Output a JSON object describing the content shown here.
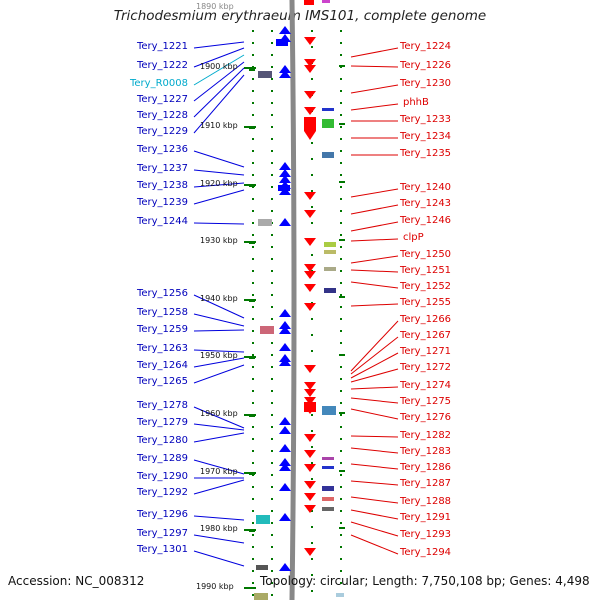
{
  "header": {
    "title": "Trichodesmium erythraeum IMS101, complete genome"
  },
  "footer": {
    "accession": "Accession: NC_008312",
    "topology": "Topology: circular; Length: 7,750,108 bp; Genes: 4,498"
  },
  "scale": {
    "top_partial": "1890 kbp",
    "ticks": [
      "1900 kbp",
      "1910 kbp",
      "1920 kbp",
      "1930 kbp",
      "1940 kbp",
      "1950 kbp",
      "1960 kbp",
      "1970 kbp",
      "1980 kbp",
      "1990 kbp"
    ]
  },
  "colors": {
    "reverse_strand": "#0000ff",
    "forward_strand": "#ff0000",
    "rna": "#00aacc",
    "backbone": "#888888",
    "tick": "#007700"
  },
  "left_labels": [
    "Tery_1221",
    "Tery_1222",
    "Tery_R0008",
    "Tery_1227",
    "Tery_1228",
    "Tery_1229",
    "Tery_1236",
    "Tery_1237",
    "Tery_1238",
    "Tery_1239",
    "Tery_1244",
    "Tery_1256",
    "Tery_1258",
    "Tery_1259",
    "Tery_1263",
    "Tery_1264",
    "Tery_1265",
    "Tery_1278",
    "Tery_1279",
    "Tery_1280",
    "Tery_1289",
    "Tery_1290",
    "Tery_1292",
    "Tery_1296",
    "Tery_1297",
    "Tery_1301"
  ],
  "right_labels": [
    "Tery_1224",
    "Tery_1226",
    "Tery_1230",
    "phhB",
    "Tery_1233",
    "Tery_1234",
    "Tery_1235",
    "Tery_1240",
    "Tery_1243",
    "Tery_1246",
    "clpP",
    "Tery_1250",
    "Tery_1251",
    "Tery_1252",
    "Tery_1255",
    "Tery_1266",
    "Tery_1267",
    "Tery_1271",
    "Tery_1272",
    "Tery_1274",
    "Tery_1275",
    "Tery_1276",
    "Tery_1282",
    "Tery_1283",
    "Tery_1286",
    "Tery_1287",
    "Tery_1288",
    "Tery_1291",
    "Tery_1293",
    "Tery_1294"
  ]
}
